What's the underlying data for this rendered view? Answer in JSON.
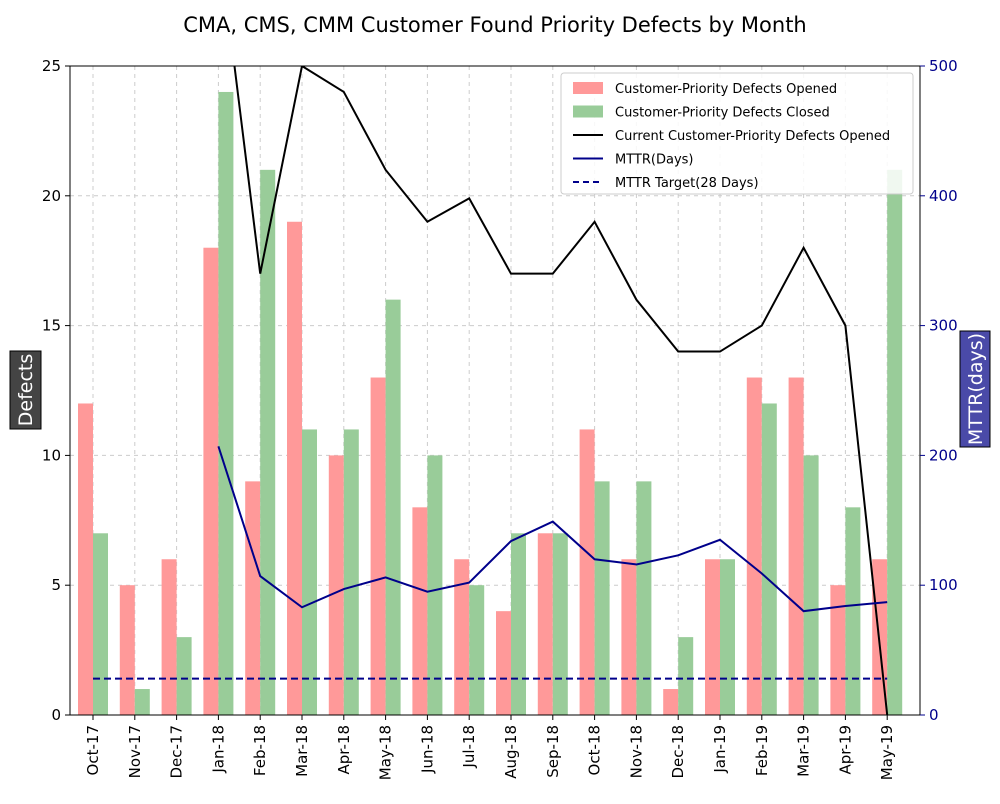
{
  "chart_data": {
    "type": "bar",
    "title": "CMA, CMS, CMM Customer Found Priority Defects by Month",
    "ylabel": "Defects",
    "y2label": "MTTR(days)",
    "ylim": [
      0,
      25
    ],
    "y2lim": [
      0,
      500
    ],
    "yticks": [
      0,
      5,
      10,
      15,
      20,
      25
    ],
    "y2ticks": [
      0,
      100,
      200,
      300,
      400,
      500
    ],
    "grid": true,
    "legend_position": "top-right",
    "categories": [
      "Oct-17",
      "Nov-17",
      "Dec-17",
      "Jan-18",
      "Feb-18",
      "Mar-18",
      "Apr-18",
      "May-18",
      "Jun-18",
      "Jul-18",
      "Aug-18",
      "Sep-18",
      "Oct-18",
      "Nov-18",
      "Dec-18",
      "Jan-19",
      "Feb-19",
      "Mar-19",
      "Apr-19",
      "May-19"
    ],
    "bar_series": [
      {
        "name": "Customer-Priority Defects Opened",
        "axis": "left",
        "color": "#ff9999",
        "values": [
          12,
          5,
          6,
          18,
          9,
          19,
          10,
          13,
          8,
          6,
          4,
          7,
          11,
          6,
          1,
          6,
          13,
          13,
          5,
          6
        ]
      },
      {
        "name": "Customer-Priority Defects Closed",
        "axis": "left",
        "color": "#99cc99",
        "values": [
          7,
          1,
          3,
          24,
          21,
          11,
          11,
          16,
          10,
          5,
          7,
          7,
          9,
          9,
          3,
          6,
          12,
          10,
          8,
          21
        ]
      }
    ],
    "line_series": [
      {
        "name": "Current Customer-Priority Defects Opened",
        "axis": "left",
        "color": "#000000",
        "style": "solid",
        "values": [
          null,
          null,
          null,
          30,
          17,
          25,
          24,
          21,
          19,
          19.9,
          17,
          17,
          19,
          16,
          14,
          14,
          15,
          18,
          15,
          0
        ]
      },
      {
        "name": "MTTR(Days)",
        "axis": "right",
        "color": "#00008b",
        "style": "solid",
        "values": [
          null,
          null,
          null,
          207,
          107,
          83,
          97,
          106,
          95,
          102,
          134,
          149,
          120,
          116,
          123,
          135,
          109,
          80,
          84,
          87
        ]
      },
      {
        "name": "MTTR Target(28 Days)",
        "axis": "right",
        "color": "#00008b",
        "style": "dashed",
        "values": [
          28,
          28,
          28,
          28,
          28,
          28,
          28,
          28,
          28,
          28,
          28,
          28,
          28,
          28,
          28,
          28,
          28,
          28,
          28,
          28
        ]
      }
    ]
  }
}
